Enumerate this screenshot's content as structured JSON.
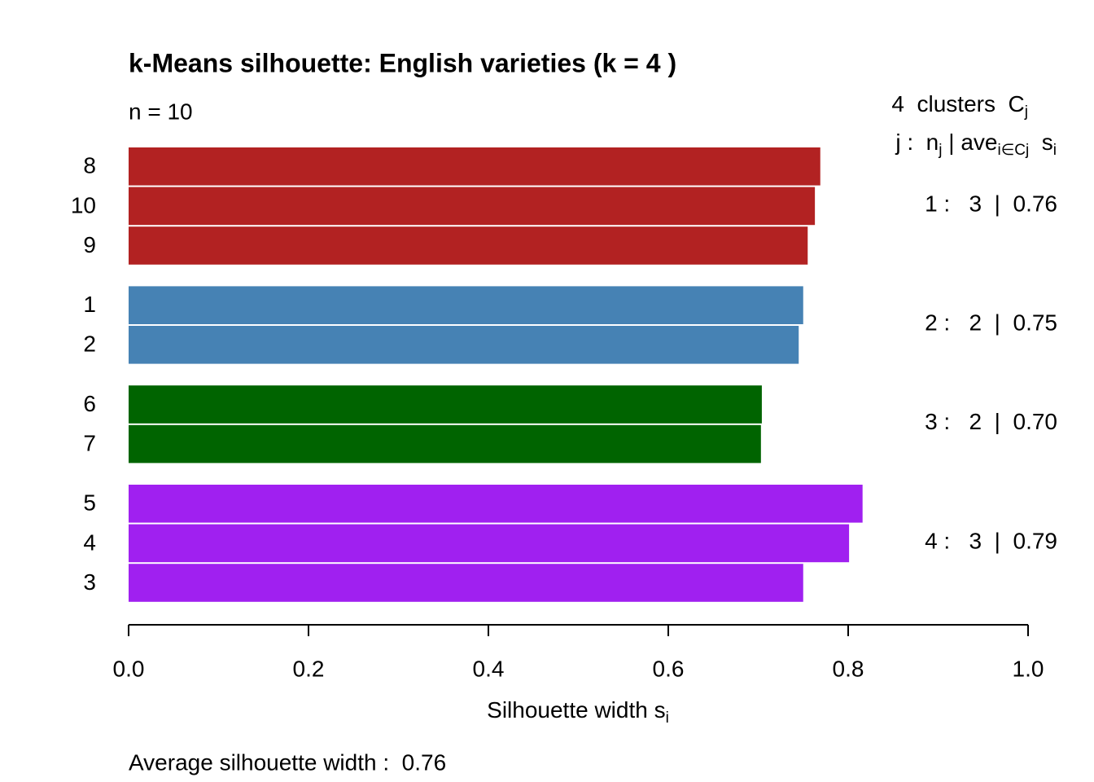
{
  "chart_data": {
    "type": "silhouette",
    "title": "k-Means silhouette: English varieties (k = 4 )",
    "subtitle": "n = 10",
    "header_line1": [
      "4  clusters  C",
      "j"
    ],
    "header_line2": [
      "j :  n",
      "j",
      " | ave",
      "i∈Cj",
      "  s",
      "i"
    ],
    "xlabel": [
      "Silhouette width s",
      "i"
    ],
    "footer": "Average silhouette width :  0.76",
    "xlim": [
      0,
      1
    ],
    "xticks": [
      {
        "value": 0,
        "label": "0.0"
      },
      0.2,
      0.4,
      0.6,
      0.8,
      {
        "value": 1,
        "label": "1.0"
      }
    ],
    "series": [
      {
        "name": "1 :   3  |  0.76",
        "color": "#b22222",
        "categories": [
          "8",
          "10",
          "9"
        ],
        "values": [
          0.769,
          0.763,
          0.755
        ]
      },
      {
        "name": "2 :   2  |  0.75",
        "color": "#4682b4",
        "categories": [
          "1",
          "2"
        ],
        "values": [
          0.75,
          0.745
        ]
      },
      {
        "name": "3 :   2  |  0.70",
        "color": "#006400",
        "categories": [
          "6",
          "7"
        ],
        "values": [
          0.704,
          0.703
        ]
      },
      {
        "name": "4 :   3  |  0.79",
        "color": "#a020f0",
        "categories": [
          "5",
          "4",
          "3"
        ],
        "values": [
          0.816,
          0.801,
          0.75
        ]
      }
    ]
  }
}
